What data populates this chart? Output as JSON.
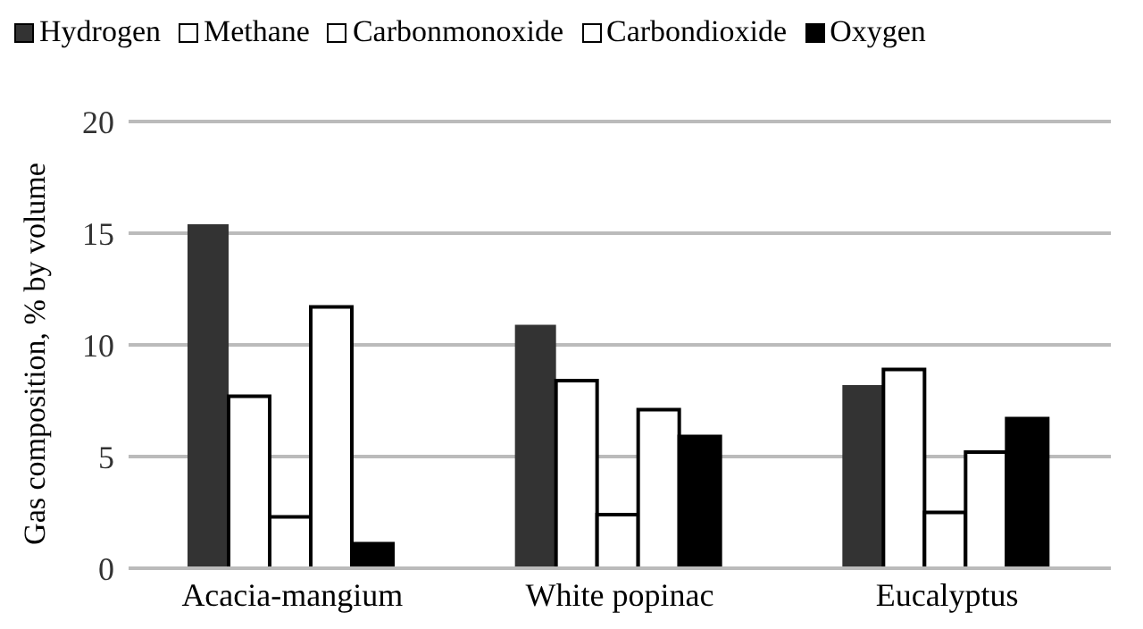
{
  "chart_data": {
    "type": "bar",
    "ylabel": "Gas composition, % by volume",
    "categories": [
      "Acacia-mangium",
      "White popinac",
      "Eucalyptus"
    ],
    "series": [
      {
        "name": "Hydrogen",
        "color": "#333333",
        "values": [
          15.4,
          10.9,
          8.2
        ]
      },
      {
        "name": "Methane",
        "color": "#ffffff",
        "values": [
          7.7,
          8.4,
          8.9
        ]
      },
      {
        "name": "Carbonmonoxide",
        "color": "#ffffff",
        "values": [
          2.3,
          2.4,
          2.5
        ]
      },
      {
        "name": "Carbondioxide",
        "color": "#ffffff",
        "values": [
          11.7,
          7.1,
          5.2
        ]
      },
      {
        "name": "Oxygen",
        "color": "#000000",
        "values": [
          1.1,
          5.9,
          6.7
        ]
      }
    ],
    "ylim": [
      0,
      20
    ],
    "yticks": [
      0,
      5,
      10,
      15,
      20
    ],
    "grid": "y",
    "legend": "top"
  }
}
